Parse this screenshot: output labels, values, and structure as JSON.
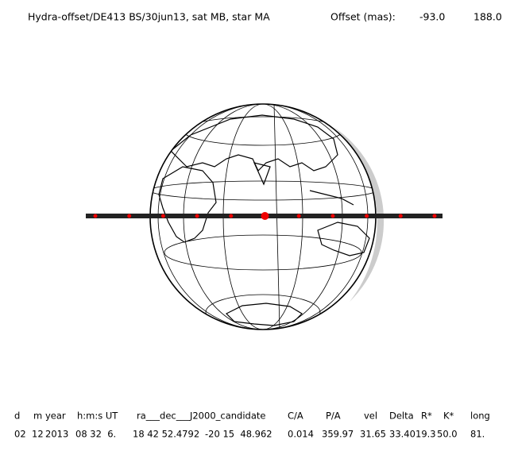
{
  "header": {
    "title": "Hydra-offset/DE413 BS/30jun13, sat MB, star MA",
    "offset_label": "Offset (mas):",
    "offset_x": "-93.0",
    "offset_y": "188.0"
  },
  "table": {
    "headers": [
      "d",
      "m",
      "year",
      "h:m:s UT",
      "ra___dec___J2000_candidate",
      "C/A",
      "P/A",
      "vel",
      "Delta",
      "R*",
      "K*",
      "long"
    ],
    "row": [
      "02",
      "12",
      "2013",
      "08 32  6.",
      "18 42 52.4792",
      "-20 15  48.962",
      "0.014",
      "359.97",
      "31.65",
      "33.40",
      "19.3",
      "50.0",
      "81."
    ]
  }
}
